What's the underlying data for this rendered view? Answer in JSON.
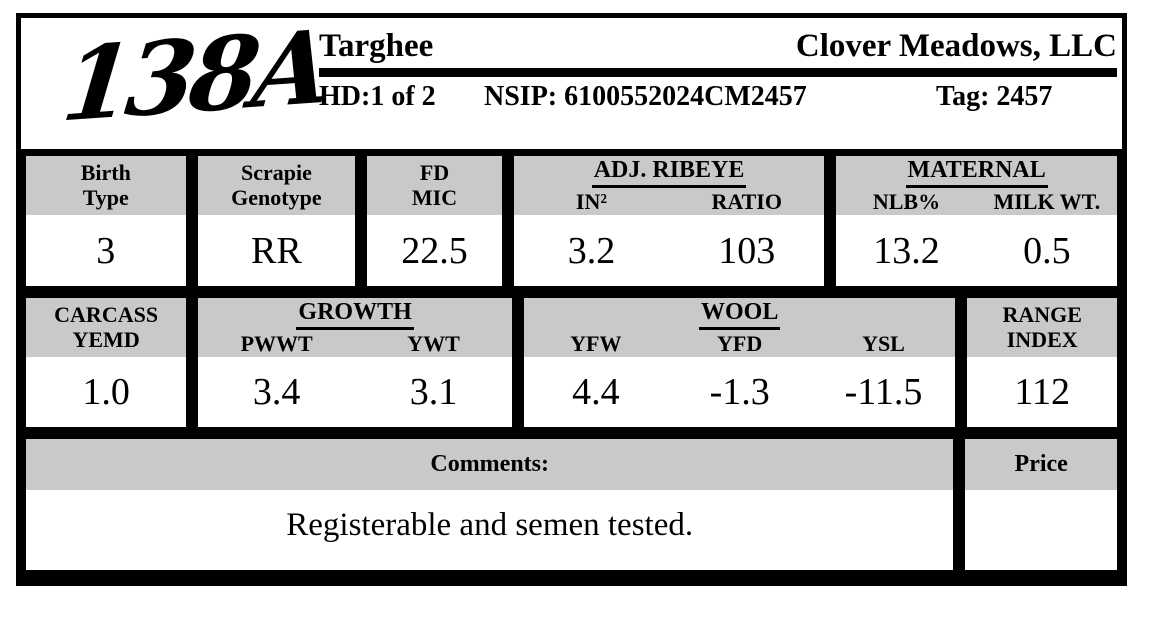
{
  "header": {
    "animal_id": "138A",
    "breed": "Targhee",
    "farm_name": "Clover Meadows, LLC",
    "head_info": "HD:1 of 2",
    "nsip_id": "NSIP: 6100552024CM2457",
    "tag": "Tag: 2457"
  },
  "epd_row1": {
    "birth_type": {
      "label1": "Birth",
      "label2": "Type",
      "value": "3"
    },
    "scrapie_genotype": {
      "label1": "Scrapie",
      "label2": "Genotype",
      "value": "RR"
    },
    "fd_mic": {
      "label1": "FD",
      "label2": "MIC",
      "value": "22.5"
    },
    "adj_ribeye": {
      "title": "ADJ. RIBEYE",
      "col1_label": "IN²",
      "col2_label": "RATIO",
      "col1_value": "3.2",
      "col2_value": "103"
    },
    "maternal": {
      "title": "MATERNAL",
      "col1_label": "NLB%",
      "col2_label": "MILK WT.",
      "col1_value": "13.2",
      "col2_value": "0.5"
    }
  },
  "epd_row2": {
    "carcass": {
      "label1": "CARCASS",
      "label2": "YEMD",
      "value": "1.0"
    },
    "growth": {
      "title": "GROWTH",
      "col1_label": "PWWT",
      "col2_label": "YWT",
      "col1_value": "3.4",
      "col2_value": "3.1"
    },
    "wool": {
      "title": "WOOL",
      "col1_label": "YFW",
      "col2_label": "YFD",
      "col3_label": "YSL",
      "col1_value": "4.4",
      "col2_value": "-1.3",
      "col3_value": "-11.5"
    },
    "range_index": {
      "label1": "RANGE",
      "label2": "INDEX",
      "value": "112"
    }
  },
  "footer": {
    "comments_label": "Comments:",
    "comments_text": "Registerable and semen tested.",
    "price_label": "Price",
    "price_value": ""
  },
  "colors": {
    "band_gray": "#c9c9c9",
    "border_black": "#000000",
    "page_background": "#ffffff"
  }
}
